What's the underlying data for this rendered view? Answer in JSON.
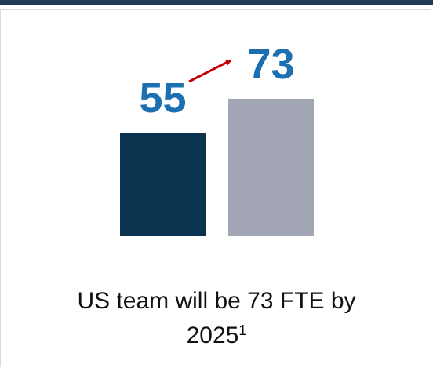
{
  "chart_data": {
    "type": "bar",
    "values": [
      55,
      73
    ],
    "colors": [
      "#0b3350",
      "#a3a6b5"
    ],
    "caption": "US team will be 73 FTE by 2025",
    "caption_footnote": "1"
  }
}
